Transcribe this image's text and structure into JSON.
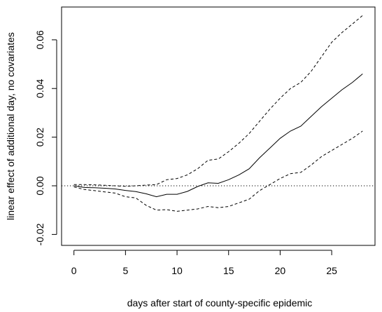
{
  "chart_data": {
    "type": "line",
    "title": "",
    "xlabel": "days after start of county-specific epidemic",
    "ylabel": "linear effect of additional day, no covariates",
    "xlim": [
      -1.2,
      29.2
    ],
    "ylim": [
      -0.0245,
      0.0735
    ],
    "x_ticks": [
      0,
      5,
      10,
      15,
      20,
      25
    ],
    "x_tick_labels": [
      "0",
      "5",
      "10",
      "15",
      "20",
      "25"
    ],
    "y_ticks": [
      -0.02,
      0.0,
      0.02,
      0.04,
      0.06
    ],
    "y_tick_labels": [
      "-0.02",
      "0.00",
      "0.02",
      "0.04",
      "0.06"
    ],
    "grid": false,
    "reference_line": {
      "y": 0,
      "style": "dotted"
    },
    "series": [
      {
        "role": "estimate",
        "style": "solid",
        "x": [
          0,
          1,
          2,
          3,
          4,
          5,
          6,
          7,
          8,
          9,
          10,
          11,
          12,
          13,
          14,
          15,
          16,
          17,
          18,
          19,
          20,
          21,
          22,
          23,
          24,
          25,
          26,
          27,
          28
        ],
        "y": [
          0,
          -0.0007,
          -0.0008,
          -0.001,
          -0.0013,
          -0.0019,
          -0.0024,
          -0.0033,
          -0.0045,
          -0.0035,
          -0.0035,
          -0.0023,
          -0.0003,
          0.0012,
          0.001,
          0.0025,
          0.0045,
          0.007,
          0.0115,
          0.0155,
          0.0195,
          0.0225,
          0.0245,
          0.0285,
          0.0325,
          0.036,
          0.0395,
          0.0425,
          0.046
        ]
      },
      {
        "role": "upper-bound",
        "style": "dashed",
        "x": [
          0,
          1,
          2,
          3,
          4,
          5,
          6,
          7,
          8,
          9,
          10,
          11,
          12,
          13,
          14,
          15,
          16,
          17,
          18,
          19,
          20,
          21,
          22,
          23,
          24,
          25,
          26,
          27,
          28
        ],
        "y": [
          0.0005,
          0.0005,
          0.0004,
          0.0002,
          0,
          -0.0002,
          0,
          0.0003,
          0.0005,
          0.0025,
          0.003,
          0.0045,
          0.007,
          0.0105,
          0.011,
          0.014,
          0.0175,
          0.0215,
          0.0265,
          0.0315,
          0.036,
          0.04,
          0.0425,
          0.047,
          0.053,
          0.059,
          0.063,
          0.0665,
          0.07
        ]
      },
      {
        "role": "lower-bound",
        "style": "dashed",
        "x": [
          0,
          1,
          2,
          3,
          4,
          5,
          6,
          7,
          8,
          9,
          10,
          11,
          12,
          13,
          14,
          15,
          16,
          17,
          18,
          19,
          20,
          21,
          22,
          23,
          24,
          25,
          26,
          27,
          28
        ],
        "y": [
          -0.0005,
          -0.0015,
          -0.002,
          -0.0025,
          -0.003,
          -0.0045,
          -0.005,
          -0.008,
          -0.01,
          -0.0098,
          -0.0105,
          -0.01,
          -0.0095,
          -0.0085,
          -0.009,
          -0.0085,
          -0.007,
          -0.0055,
          -0.002,
          0.0005,
          0.003,
          0.005,
          0.0055,
          0.0085,
          0.012,
          0.0145,
          0.017,
          0.0195,
          0.0225
        ]
      }
    ]
  }
}
